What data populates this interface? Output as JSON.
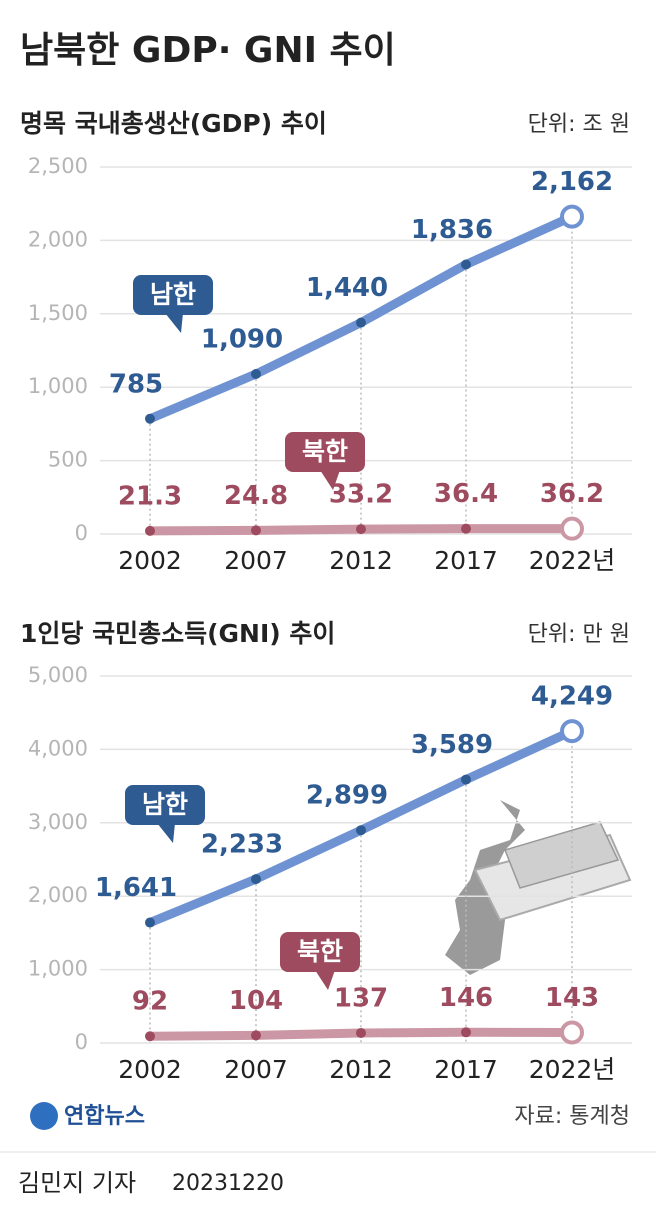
{
  "title": "남북한 GDP· GNI 추이",
  "chart_data": [
    {
      "type": "line",
      "title": "명목 국내총생산(GDP) 추이",
      "unit": "단위: 조 원",
      "categories": [
        "2002",
        "2007",
        "2012",
        "2017",
        "2022년"
      ],
      "series": [
        {
          "name": "남한",
          "color": "#6f93d2",
          "marker_color": "#2f5b93",
          "values": [
            785,
            1090,
            1440,
            1836,
            2162
          ],
          "value_labels": [
            "785",
            "1,090",
            "1,440",
            "1,836",
            "2,162"
          ]
        },
        {
          "name": "북한",
          "color": "#cc97a4",
          "marker_color": "#9e4a5f",
          "values": [
            21.3,
            24.8,
            33.2,
            36.4,
            36.2
          ]
        }
      ],
      "ylim": [
        0,
        2500
      ],
      "yticks": [
        0,
        500,
        {
          "value": 1000,
          "label": "1,000"
        },
        {
          "value": 1500,
          "label": "1,500"
        },
        {
          "value": 2000,
          "label": "2,000"
        },
        {
          "value": 2500,
          "label": "2,500"
        }
      ],
      "grid": true
    },
    {
      "type": "line",
      "title": "1인당 국민총소득(GNI) 추이",
      "unit": "단위: 만 원",
      "categories": [
        "2002",
        "2007",
        "2012",
        "2017",
        "2022년"
      ],
      "series": [
        {
          "name": "남한",
          "color": "#6f93d2",
          "marker_color": "#2f5b93",
          "values": [
            1641,
            2233,
            2899,
            3589,
            4249
          ],
          "value_labels": [
            "1,641",
            "2,233",
            "2,899",
            "3,589",
            "4,249"
          ]
        },
        {
          "name": "북한",
          "color": "#cc97a4",
          "marker_color": "#9e4a5f",
          "values": [
            92,
            104,
            137,
            146,
            143
          ]
        }
      ],
      "ylim": [
        0,
        5000
      ],
      "yticks": [
        0,
        {
          "value": 1000,
          "label": "1,000"
        },
        {
          "value": 2000,
          "label": "2,000"
        },
        {
          "value": 3000,
          "label": "3,000"
        },
        {
          "value": 4000,
          "label": "4,000"
        },
        {
          "value": 5000,
          "label": "5,000"
        }
      ],
      "grid": true
    }
  ],
  "logo": "연합뉴스",
  "source": "자료: 통계청",
  "byline": "김민지 기자",
  "date": "20231220"
}
